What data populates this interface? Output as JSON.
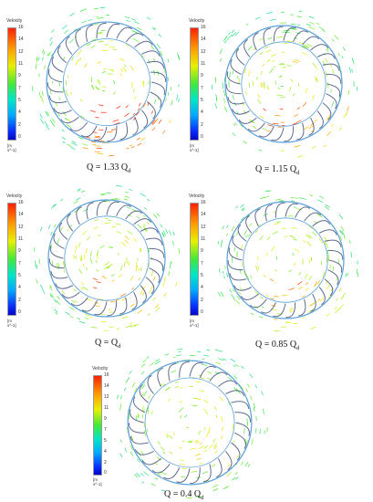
{
  "panels": [
    {
      "legend_title": "Velocity",
      "ticks": [
        "16",
        "14",
        "12",
        "11",
        "9",
        "7",
        "5",
        "4",
        "2",
        "0"
      ],
      "unit": "[m s^-1]",
      "caption_prefix": "Q = 1.33 Q",
      "caption_sub": "d"
    },
    {
      "legend_title": "Velocity",
      "ticks": [
        "16",
        "14",
        "12",
        "11",
        "9",
        "7",
        "5",
        "4",
        "2",
        "0"
      ],
      "unit": "[m s^-1]",
      "caption_prefix": "Q = 1.15 Q",
      "caption_sub": "d"
    },
    {
      "legend_title": "Velocity",
      "ticks": [
        "16",
        "14",
        "12",
        "11",
        "9",
        "7",
        "5",
        "4",
        "2",
        "0"
      ],
      "unit": "[m s^-1]",
      "caption_prefix": "Q = Q",
      "caption_sub": "d"
    },
    {
      "legend_title": "Velocity",
      "ticks": [
        "16",
        "14",
        "12",
        "11",
        "9",
        "7",
        "5",
        "4",
        "2",
        "0"
      ],
      "unit": "[m s^-1]",
      "caption_prefix": "Q = 0.85 Q",
      "caption_sub": "d"
    },
    {
      "legend_title": "Velocity",
      "ticks": [
        "16",
        "14",
        "12",
        "11",
        "9",
        "7",
        "5",
        "4",
        "2",
        "0"
      ],
      "unit": "[m s^-1]",
      "caption_prefix": "Q = 0.4 Q",
      "caption_sub": "d"
    }
  ],
  "colors": {
    "high": "#ff2000",
    "mid": "#43e83a",
    "low": "#0a2fff",
    "blade": "#2a3a6a"
  }
}
